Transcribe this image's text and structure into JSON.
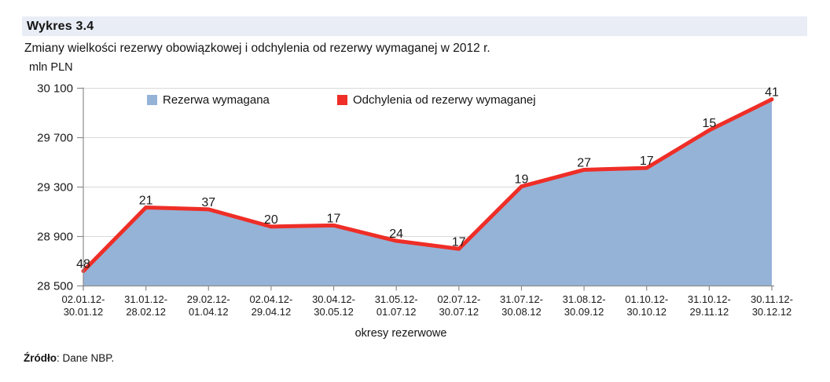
{
  "header": {
    "tag": "Wykres 3.4"
  },
  "subtitle": "Zmiany wielkości rezerwy obowiązkowej i odchylenia od rezerwy wymaganej w 2012 r.",
  "unit_label": "mln PLN",
  "legend": [
    {
      "label": "Rezerwa wymagana",
      "color": "#95b3d7"
    },
    {
      "label": "Odchylenia od rezerwy wymaganej",
      "color": "#ee2e27"
    }
  ],
  "xaxis_title": "okresy rezerwowe",
  "source": {
    "prefix": "Źródło",
    "text": ": Dane NBP."
  },
  "colors": {
    "header_bg": "#e9edf6",
    "area_blue": "#95b3d7",
    "line_red": "#ee2e27",
    "gridline": "#d9d9d9",
    "axis": "#8c8c8c",
    "text": "#1a1a1a"
  },
  "chart_data": {
    "type": "area",
    "title": "Wykres 3.4 — Zmiany wielkości rezerwy obowiązkowej i odchylenia od rezerwy wymaganej w 2012 r.",
    "ylabel": "mln PLN",
    "xlabel": "okresy rezerwowe",
    "ylim": [
      28500,
      30100
    ],
    "yticks": [
      28500,
      28900,
      29300,
      29700,
      30100
    ],
    "ytick_labels": [
      "28 500",
      "28 900",
      "29 300",
      "29 700",
      "30 100"
    ],
    "grid": true,
    "legend_position": "top-inside",
    "categories": [
      {
        "line1": "02.01.12-",
        "line2": "30.01.12"
      },
      {
        "line1": "31.01.12-",
        "line2": "28.02.12"
      },
      {
        "line1": "29.02.12-",
        "line2": "01.04.12"
      },
      {
        "line1": "02.04.12-",
        "line2": "29.04.12"
      },
      {
        "line1": "30.04.12-",
        "line2": "30.05.12"
      },
      {
        "line1": "31.05.12-",
        "line2": "01.07.12"
      },
      {
        "line1": "02.07.12-",
        "line2": "30.07.12"
      },
      {
        "line1": "31.07.12-",
        "line2": "30.08.12"
      },
      {
        "line1": "31.08.12-",
        "line2": "30.09.12"
      },
      {
        "line1": "01.10.12-",
        "line2": "30.10.12"
      },
      {
        "line1": "31.10.12-",
        "line2": "29.11.12"
      },
      {
        "line1": "30.11.12-",
        "line2": "30.12.12"
      }
    ],
    "series": [
      {
        "name": "Rezerwa wymagana",
        "type": "area",
        "color": "#95b3d7",
        "values_estimated_mln_pln": [
          28620,
          29135,
          29120,
          28980,
          28990,
          28865,
          28800,
          29305,
          29440,
          29455,
          29760,
          30010
        ]
      },
      {
        "name": "Odchylenia od rezerwy wymaganej",
        "type": "line",
        "color": "#ee2e27",
        "values": [
          48,
          21,
          37,
          20,
          17,
          24,
          17,
          19,
          27,
          17,
          15,
          41
        ],
        "data_labels_shown": true,
        "note": "linia biegnie po górnej krawędzi obszaru rezerwy wymaganej"
      }
    ]
  }
}
